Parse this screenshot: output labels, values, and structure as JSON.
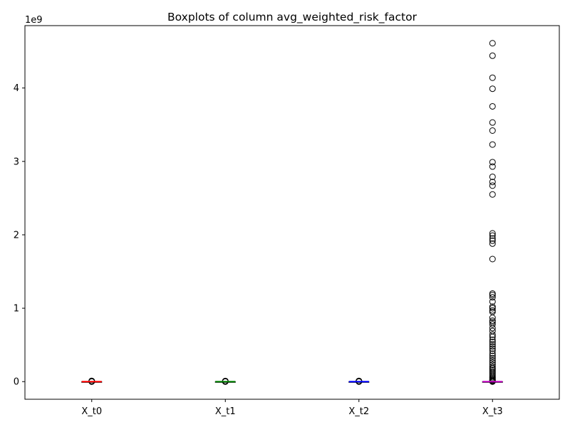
{
  "chart_data": {
    "type": "box",
    "title": "Boxplots of column avg_weighted_risk_factor",
    "xlabel": "",
    "ylabel": "",
    "y_scale_label": "1e9",
    "y_multiplier": 1000000000,
    "ylim": [
      -240000000,
      4850000000
    ],
    "y_ticks": [
      0,
      1,
      2,
      3,
      4
    ],
    "categories": [
      "X_t0",
      "X_t1",
      "X_t2",
      "X_t3"
    ],
    "grid": false,
    "series": [
      {
        "category": "X_t0",
        "color": "#ff0000",
        "median": 0,
        "q1": 0,
        "q3": 0,
        "whisker_low": 0,
        "whisker_high": 0,
        "outliers": [
          0,
          2000000,
          4000000,
          7000000,
          10000000
        ]
      },
      {
        "category": "X_t1",
        "color": "#008000",
        "median": 0,
        "q1": 0,
        "q3": 0,
        "whisker_low": 0,
        "whisker_high": 0,
        "outliers": [
          0,
          2000000,
          4000000,
          6000000,
          9000000
        ]
      },
      {
        "category": "X_t2",
        "color": "#0000ff",
        "median": 0,
        "q1": 0,
        "q3": 0,
        "whisker_low": 0,
        "whisker_high": 0,
        "outliers": [
          0,
          2000000,
          4000000,
          7000000,
          10000000
        ]
      },
      {
        "category": "X_t3",
        "color": "#bf00bf",
        "median": 0,
        "q1": 0,
        "q3": 0,
        "whisker_low": 0,
        "whisker_high": 0,
        "outliers": [
          4610000000,
          4440000000,
          4140000000,
          3990000000,
          3750000000,
          3530000000,
          3420000000,
          3230000000,
          2990000000,
          2930000000,
          2790000000,
          2720000000,
          2670000000,
          2550000000,
          2020000000,
          1990000000,
          1950000000,
          1920000000,
          1880000000,
          1670000000,
          1200000000,
          1180000000,
          1150000000,
          1090000000,
          1020000000,
          1000000000,
          970000000,
          950000000,
          870000000,
          830000000,
          810000000,
          780000000,
          730000000,
          690000000,
          640000000,
          610000000,
          570000000,
          540000000,
          510000000,
          480000000,
          450000000,
          420000000,
          380000000,
          350000000,
          320000000,
          290000000,
          260000000,
          230000000,
          200000000,
          180000000,
          160000000,
          140000000,
          120000000,
          100000000,
          80000000,
          60000000,
          45000000,
          30000000,
          20000000,
          10000000,
          5000000,
          0
        ]
      }
    ]
  }
}
